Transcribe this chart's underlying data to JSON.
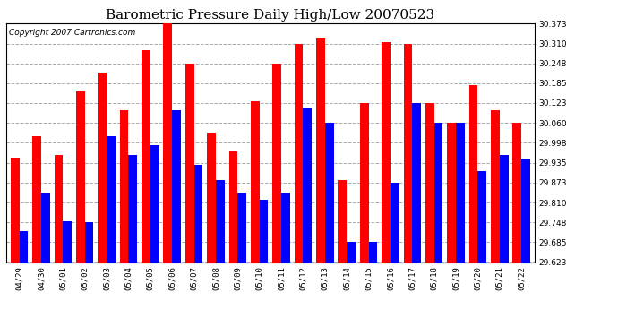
{
  "title": "Barometric Pressure Daily High/Low 20070523",
  "copyright": "Copyright 2007 Cartronics.com",
  "dates": [
    "04/29",
    "04/30",
    "05/01",
    "05/02",
    "05/03",
    "05/04",
    "05/05",
    "05/06",
    "05/07",
    "05/08",
    "05/09",
    "05/10",
    "05/11",
    "05/12",
    "05/13",
    "05/14",
    "05/15",
    "05/16",
    "05/17",
    "05/18",
    "05/19",
    "05/20",
    "05/21",
    "05/22"
  ],
  "highs": [
    29.95,
    30.02,
    29.96,
    30.16,
    30.22,
    30.1,
    30.29,
    30.373,
    30.248,
    30.03,
    29.97,
    30.13,
    30.248,
    30.31,
    30.33,
    29.88,
    30.123,
    30.315,
    30.31,
    30.123,
    30.06,
    30.18,
    30.1,
    30.06
  ],
  "lows": [
    29.72,
    29.84,
    29.75,
    29.748,
    30.02,
    29.96,
    29.99,
    30.1,
    29.93,
    29.88,
    29.84,
    29.82,
    29.84,
    30.11,
    30.06,
    29.685,
    29.685,
    29.873,
    30.123,
    30.06,
    30.06,
    29.91,
    29.96,
    29.948
  ],
  "high_color": "#ff0000",
  "low_color": "#0000ff",
  "bg_color": "#ffffff",
  "grid_color": "#aaaaaa",
  "ymin": 29.623,
  "ymax": 30.373,
  "yticks": [
    29.623,
    29.685,
    29.748,
    29.81,
    29.873,
    29.935,
    29.998,
    30.06,
    30.123,
    30.185,
    30.248,
    30.31,
    30.373
  ],
  "bar_width": 0.4,
  "title_fontsize": 11,
  "copyright_fontsize": 6.5,
  "tick_fontsize": 6.5
}
